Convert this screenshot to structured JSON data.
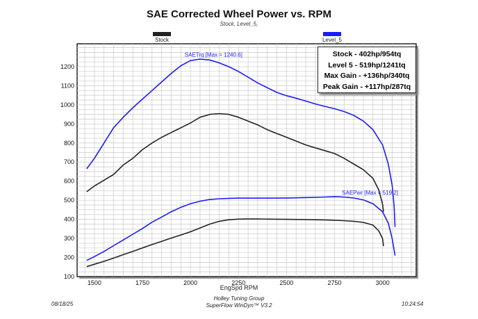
{
  "title": "SAE Corrected Wheel Power vs. RPM",
  "subtitle": "Stock, Level_5,",
  "legend": [
    {
      "label": "Stock",
      "color": "#222222"
    },
    {
      "label": "Level_5",
      "color": "#1a1aff"
    }
  ],
  "summary": [
    "Stock - 402hp/954tq",
    "Level 5 - 519hp/1241tq",
    "Max Gain - +136hp/340tq",
    "Peak Gain - +117hp/287tq"
  ],
  "footer": {
    "date": "08/18/25",
    "time": "10:24:54",
    "line1": "Holley Tuning Group",
    "line2": "SuperFlow WinDyn™ V3.2"
  },
  "chart_data": {
    "type": "line",
    "xlabel": "EngSpd RPM",
    "ylabel": "",
    "xlim": [
      1410,
      3175
    ],
    "ylim": [
      100,
      1320
    ],
    "xticks": [
      1500,
      1750,
      2000,
      2250,
      2500,
      2750,
      3000
    ],
    "yticks": [
      100,
      200,
      300,
      400,
      500,
      600,
      700,
      800,
      900,
      1000,
      1100,
      1200
    ],
    "grid": true,
    "annotations": [
      {
        "text": "SAETrq [Max = 1240.6]",
        "x": 2120,
        "y": 1245,
        "color": "#1a1aff"
      },
      {
        "text": "SAEPwr [Max = 519.2]",
        "x": 2935,
        "y": 522,
        "color": "#1a1aff"
      }
    ],
    "series": [
      {
        "name": "Stock",
        "color": "#222222",
        "x": [
          1460,
          1500,
          1550,
          1600,
          1650,
          1700,
          1750,
          1800,
          1850,
          1900,
          1950,
          2000,
          2050,
          2100,
          2150,
          2200,
          2250,
          2300,
          2350,
          2400,
          2450,
          2500,
          2550,
          2600,
          2650,
          2700,
          2750,
          2800,
          2850,
          2900,
          2950,
          2980,
          3000,
          3005
        ],
        "y": [
          545,
          575,
          605,
          635,
          685,
          720,
          765,
          800,
          830,
          855,
          880,
          905,
          935,
          950,
          954,
          950,
          935,
          915,
          895,
          870,
          850,
          830,
          810,
          790,
          775,
          760,
          745,
          720,
          690,
          660,
          615,
          555,
          480,
          440
        ]
      },
      {
        "name": "Stock",
        "color": "#222222",
        "x": [
          1460,
          1500,
          1550,
          1600,
          1650,
          1700,
          1750,
          1800,
          1850,
          1900,
          1950,
          2000,
          2050,
          2100,
          2150,
          2200,
          2250,
          2300,
          2350,
          2400,
          2500,
          2600,
          2700,
          2750,
          2800,
          2850,
          2900,
          2950,
          2980,
          3000,
          3005
        ],
        "y": [
          152,
          165,
          180,
          197,
          215,
          232,
          250,
          268,
          285,
          302,
          318,
          335,
          355,
          375,
          390,
          398,
          401,
          402,
          402,
          401,
          400,
          399,
          397,
          395,
          393,
          390,
          384,
          370,
          340,
          300,
          260
        ]
      },
      {
        "name": "Level_5",
        "color": "#1a1aff",
        "x": [
          1460,
          1500,
          1550,
          1600,
          1650,
          1700,
          1750,
          1800,
          1850,
          1900,
          1950,
          2000,
          2050,
          2100,
          2150,
          2200,
          2250,
          2300,
          2350,
          2400,
          2450,
          2500,
          2550,
          2600,
          2650,
          2700,
          2750,
          2800,
          2850,
          2900,
          2950,
          3000,
          3030,
          3050,
          3060,
          3065
        ],
        "y": [
          665,
          720,
          800,
          880,
          935,
          985,
          1030,
          1075,
          1120,
          1165,
          1205,
          1232,
          1240,
          1235,
          1220,
          1200,
          1175,
          1145,
          1115,
          1090,
          1065,
          1048,
          1035,
          1020,
          1005,
          992,
          980,
          965,
          945,
          915,
          870,
          790,
          690,
          580,
          470,
          360
        ]
      },
      {
        "name": "Level_5",
        "color": "#1a1aff",
        "x": [
          1460,
          1500,
          1550,
          1600,
          1650,
          1700,
          1750,
          1800,
          1850,
          1900,
          1950,
          2000,
          2050,
          2100,
          2150,
          2200,
          2250,
          2300,
          2400,
          2500,
          2600,
          2700,
          2750,
          2800,
          2850,
          2900,
          2950,
          3000,
          3030,
          3050,
          3060,
          3065
        ],
        "y": [
          185,
          205,
          232,
          262,
          292,
          322,
          352,
          385,
          412,
          440,
          463,
          482,
          495,
          504,
          508,
          510,
          511,
          511,
          511,
          512,
          514,
          517,
          519,
          517,
          512,
          502,
          482,
          440,
          380,
          300,
          240,
          210
        ]
      }
    ]
  }
}
